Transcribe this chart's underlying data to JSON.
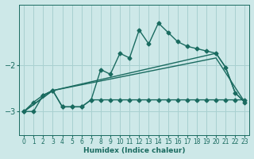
{
  "xlabel": "Humidex (Indice chaleur)",
  "xlim": [
    -0.5,
    23.5
  ],
  "ylim": [
    -3.5,
    -0.7
  ],
  "yticks": [
    -3,
    -2
  ],
  "xticks": [
    0,
    1,
    2,
    3,
    4,
    5,
    6,
    7,
    8,
    9,
    10,
    11,
    12,
    13,
    14,
    15,
    16,
    17,
    18,
    19,
    20,
    21,
    22,
    23
  ],
  "background_color": "#cde8e8",
  "grid_color": "#a8d0d0",
  "line_color": "#1a6b60",
  "series": [
    {
      "x": [
        0,
        1,
        2,
        3,
        4,
        5,
        6,
        7,
        8,
        9,
        10,
        11,
        12,
        13,
        14,
        15,
        16,
        17,
        18,
        19,
        20,
        21,
        22,
        23
      ],
      "y": [
        -3.0,
        -2.8,
        -2.65,
        -2.55,
        -2.9,
        -2.9,
        -2.9,
        -2.75,
        -2.1,
        -2.2,
        -1.75,
        -1.85,
        -1.25,
        -1.55,
        -1.1,
        -1.3,
        -1.5,
        -1.6,
        -1.65,
        -1.7,
        -1.75,
        -2.05,
        -2.6,
        -2.8
      ],
      "marker": "D",
      "markersize": 2.5,
      "linewidth": 1.0
    },
    {
      "x": [
        0,
        3,
        20,
        21,
        22,
        23
      ],
      "y": [
        -3.0,
        -2.55,
        -1.75,
        -2.05,
        -2.6,
        -2.8
      ],
      "marker": null,
      "linewidth": 1.0
    },
    {
      "x": [
        0,
        3,
        20,
        23
      ],
      "y": [
        -3.0,
        -2.55,
        -1.85,
        -2.8
      ],
      "marker": null,
      "linewidth": 1.0
    },
    {
      "x": [
        0,
        1,
        2,
        3,
        4,
        5,
        6,
        7,
        8,
        9,
        10,
        11,
        12,
        13,
        14,
        15,
        16,
        17,
        18,
        19,
        20,
        21,
        22,
        23
      ],
      "y": [
        -3.0,
        -3.0,
        -2.65,
        -2.55,
        -2.9,
        -2.9,
        -2.9,
        -2.75,
        -2.75,
        -2.75,
        -2.75,
        -2.75,
        -2.75,
        -2.75,
        -2.75,
        -2.75,
        -2.75,
        -2.75,
        -2.75,
        -2.75,
        -2.75,
        -2.75,
        -2.75,
        -2.75
      ],
      "marker": "D",
      "markersize": 2.5,
      "linewidth": 1.0
    }
  ]
}
